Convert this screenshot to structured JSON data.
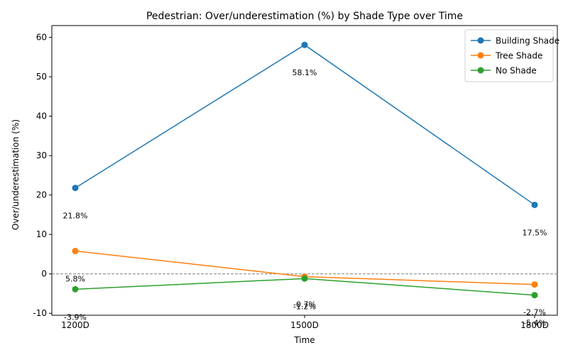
{
  "chart_data": {
    "type": "line",
    "title": "Pedestrian: Over/underestimation (%) by Shade Type over Time",
    "xlabel": "Time",
    "ylabel": "Over/underestimation (%)",
    "categories": [
      "1200D",
      "1500D",
      "1800D"
    ],
    "ylim": [
      -10.5,
      63
    ],
    "yticks": [
      -10,
      0,
      10,
      20,
      30,
      40,
      50,
      60
    ],
    "reference_line": 0,
    "legend_position": "top-right",
    "grid": false,
    "series": [
      {
        "name": "Building Shade",
        "color": "#1f77b4",
        "values": [
          21.8,
          58.1,
          17.5
        ],
        "labels": [
          "21.8%",
          "58.1%",
          "17.5%"
        ]
      },
      {
        "name": "Tree Shade",
        "color": "#ff7f0e",
        "values": [
          5.8,
          -0.7,
          -2.7
        ],
        "labels": [
          "5.8%",
          "-0.7%",
          "-2.7%"
        ]
      },
      {
        "name": "No Shade",
        "color": "#2ca02c",
        "values": [
          -3.9,
          -1.2,
          -5.4
        ],
        "labels": [
          "-3.9%",
          "-1.2%",
          "-5.4%"
        ]
      }
    ]
  }
}
